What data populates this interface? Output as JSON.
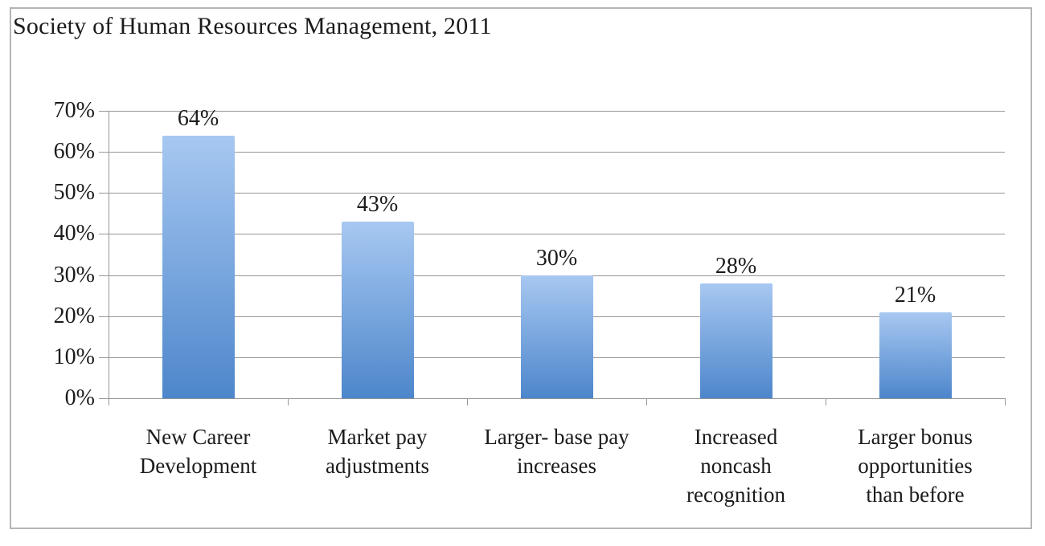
{
  "title": "Society of Human Resources Management, 2011",
  "chart_data": {
    "type": "bar",
    "title": "Society of Human Resources Management, 2011",
    "categories": [
      "New Career Development",
      "Market pay adjustments",
      "Larger- base pay increases",
      "Increased noncash recognition",
      "Larger bonus opportunities than before"
    ],
    "wrapped_labels": [
      [
        "New Career",
        "Development"
      ],
      [
        "Market pay",
        "adjustments"
      ],
      [
        "Larger- base pay",
        "increases"
      ],
      [
        "Increased",
        "noncash",
        "recognition"
      ],
      [
        "Larger bonus",
        "opportunities",
        "than before"
      ]
    ],
    "values": [
      64,
      43,
      30,
      28,
      21
    ],
    "value_labels": [
      "64%",
      "43%",
      "30%",
      "28%",
      "21%"
    ],
    "y_ticks": [
      "0%",
      "10%",
      "20%",
      "30%",
      "40%",
      "50%",
      "60%",
      "70%"
    ],
    "ylim": [
      0,
      70
    ],
    "y_tick_step": 10,
    "xlabel": "",
    "ylabel": "",
    "grid": true,
    "legend": false,
    "colors": {
      "bar_gradient_top": "#a7c8f1",
      "bar_gradient_bottom": "#4d86cb",
      "gridline": "#969696",
      "axis": "#969696",
      "text": "#1b1b1b",
      "frame_border": "#b5b5b5",
      "background": "#ffffff"
    }
  }
}
